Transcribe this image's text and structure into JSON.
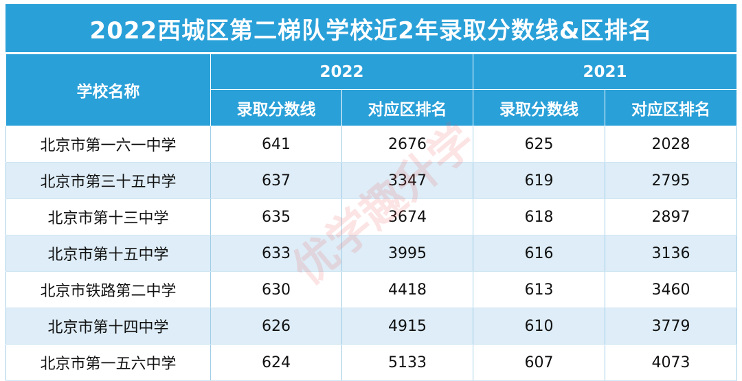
{
  "title": "2022西城区第二梯队学校近2年录取分数线&区排名",
  "header": {
    "school_col": "学校名称",
    "year_a": "2022",
    "year_b": "2021",
    "score_label": "录取分数线",
    "rank_label": "对应区排名"
  },
  "rows": [
    {
      "school": "北京市第一六一中学",
      "score_2022": "641",
      "rank_2022": "2676",
      "score_2021": "625",
      "rank_2021": "2028"
    },
    {
      "school": "北京市第三十五中学",
      "score_2022": "637",
      "rank_2022": "3347",
      "score_2021": "619",
      "rank_2021": "2795"
    },
    {
      "school": "北京市第十三中学",
      "score_2022": "635",
      "rank_2022": "3674",
      "score_2021": "618",
      "rank_2021": "2897"
    },
    {
      "school": "北京市第十五中学",
      "score_2022": "633",
      "rank_2022": "3995",
      "score_2021": "616",
      "rank_2021": "3136"
    },
    {
      "school": "北京市铁路第二中学",
      "score_2022": "630",
      "rank_2022": "4418",
      "score_2021": "613",
      "rank_2021": "3460"
    },
    {
      "school": "北京市第十四中学",
      "score_2022": "626",
      "rank_2022": "4915",
      "score_2021": "610",
      "rank_2021": "3779"
    },
    {
      "school": "北京市第一五六中学",
      "score_2022": "624",
      "rank_2022": "5133",
      "score_2021": "607",
      "rank_2021": "4073"
    }
  ],
  "watermark": "优学趣升学",
  "colors": {
    "header_bg": "#2aa0d8",
    "stripe_bg": "#deedf7",
    "watermark": "#eb5a5a"
  }
}
